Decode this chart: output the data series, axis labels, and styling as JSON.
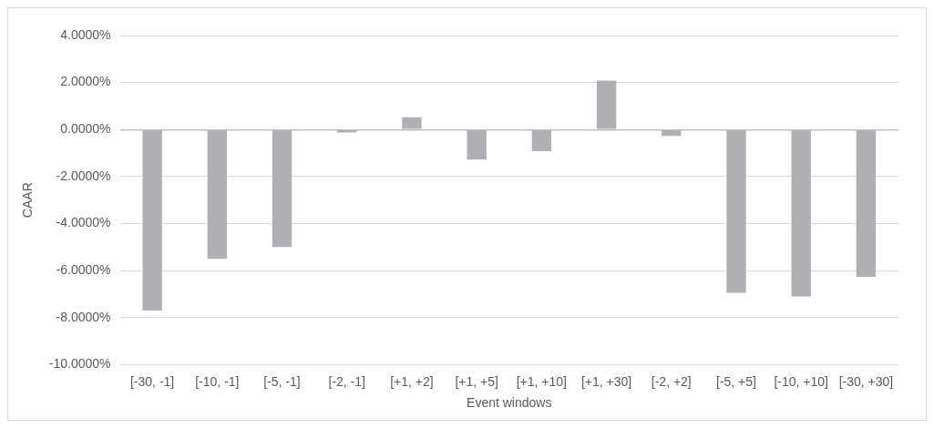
{
  "chart_data": {
    "type": "bar",
    "xlabel": "Event windows",
    "ylabel": "CAAR",
    "categories": [
      "[-30, -1]",
      "[-10, -1]",
      "[-5, -1]",
      "[-2, -1]",
      "[+1, +2]",
      "[+1, +5]",
      "[+1, +10]",
      "[+1, +30]",
      "[-2, +2]",
      "[-5, +5]",
      "[-10, +10]",
      "[-30, +30]"
    ],
    "values": [
      -7.7,
      -5.5,
      -5.0,
      -0.13,
      0.52,
      -1.28,
      -0.92,
      2.08,
      -0.27,
      -6.94,
      -7.1,
      -6.27
    ],
    "color": "#afb0b3",
    "ylim": [
      -10,
      4
    ],
    "yticks": [
      {
        "value": -10,
        "label": "-10.0000%"
      },
      {
        "value": -8,
        "label": "-8.0000%"
      },
      {
        "value": -6,
        "label": "-6.0000%"
      },
      {
        "value": -4,
        "label": "-4.0000%"
      },
      {
        "value": -2,
        "label": "-2.0000%"
      },
      {
        "value": 0,
        "label": "0.0000%"
      },
      {
        "value": 2,
        "label": "2.0000%"
      },
      {
        "value": 4,
        "label": "4.0000%"
      }
    ],
    "grid": "y",
    "legend": false
  }
}
